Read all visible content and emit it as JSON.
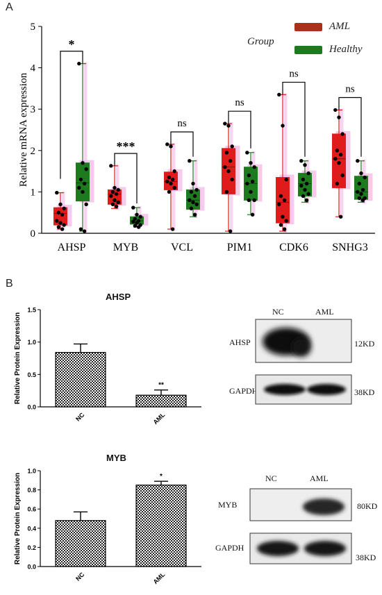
{
  "panel_a": {
    "letter": "A",
    "legend_title": "Group",
    "colors": {
      "AML": "#e01b1b",
      "AML_legend": "#a8321b",
      "Healthy": "#1e7a1e",
      "shadow": "#f3b8e6"
    }
  },
  "panel_b": {
    "letter": "B"
  },
  "chart_data": [
    {
      "type": "box",
      "title": "",
      "xlabel": "",
      "ylabel": "Relative mRNA expression",
      "ylim": [
        0,
        5
      ],
      "yticks": [
        0,
        1,
        2,
        3,
        4,
        5
      ],
      "categories": [
        "AHSP",
        "MYB",
        "VCL",
        "PIM1",
        "CDK6",
        "SNHG3"
      ],
      "legend": [
        "AML",
        "Healthy"
      ],
      "legend_placement": "top-right",
      "significance": [
        "*",
        "***",
        "ns",
        "ns",
        "ns",
        "ns"
      ],
      "series": [
        {
          "name": "AML",
          "color": "#e01b1b",
          "boxes": [
            {
              "min": 0.1,
              "q1": 0.2,
              "median": 0.48,
              "q3": 0.62,
              "max": 0.98
            },
            {
              "min": 0.6,
              "q1": 0.7,
              "median": 0.95,
              "q3": 1.05,
              "max": 1.63
            },
            {
              "min": 0.1,
              "q1": 1.05,
              "median": 1.25,
              "q3": 1.48,
              "max": 2.15
            },
            {
              "min": 0.05,
              "q1": 0.95,
              "median": 1.6,
              "q3": 2.05,
              "max": 2.65
            },
            {
              "min": 0.05,
              "q1": 0.25,
              "median": 0.75,
              "q3": 1.35,
              "max": 3.35
            },
            {
              "min": 0.4,
              "q1": 1.1,
              "median": 1.8,
              "q3": 2.4,
              "max": 2.98
            }
          ],
          "points": [
            [
              0.98,
              0.7,
              0.6,
              0.5,
              0.45,
              0.3,
              0.25,
              0.2,
              0.15,
              0.1
            ],
            [
              1.63,
              1.1,
              1.05,
              1.0,
              0.95,
              0.9,
              0.8,
              0.75,
              0.7,
              0.65
            ],
            [
              2.15,
              2.1,
              1.5,
              1.35,
              1.3,
              1.25,
              1.2,
              1.1,
              1.0,
              0.1
            ],
            [
              2.65,
              2.6,
              2.1,
              1.95,
              1.75,
              1.6,
              1.5,
              1.3,
              1.0,
              0.05
            ],
            [
              3.35,
              2.6,
              1.3,
              0.9,
              0.8,
              0.7,
              0.4,
              0.3,
              0.2,
              0.1
            ],
            [
              2.98,
              2.8,
              2.4,
              2.0,
              1.9,
              1.8,
              1.7,
              1.4,
              1.2,
              0.4
            ]
          ]
        },
        {
          "name": "Healthy",
          "color": "#1e7a1e",
          "boxes": [
            {
              "min": 0.05,
              "q1": 0.78,
              "median": 1.22,
              "q3": 1.7,
              "max": 4.1
            },
            {
              "min": 0.15,
              "q1": 0.22,
              "median": 0.3,
              "q3": 0.4,
              "max": 0.62
            },
            {
              "min": 0.4,
              "q1": 0.58,
              "median": 0.8,
              "q3": 1.05,
              "max": 1.75
            },
            {
              "min": 0.45,
              "q1": 0.8,
              "median": 1.2,
              "q3": 1.6,
              "max": 1.95
            },
            {
              "min": 0.75,
              "q1": 0.9,
              "median": 1.2,
              "q3": 1.45,
              "max": 1.75
            },
            {
              "min": 0.75,
              "q1": 0.82,
              "median": 1.0,
              "q3": 1.38,
              "max": 1.75
            }
          ],
          "points": [
            [
              4.1,
              1.7,
              1.55,
              1.3,
              1.2,
              1.1,
              1.0,
              0.7,
              0.1,
              0.05
            ],
            [
              0.62,
              0.45,
              0.4,
              0.35,
              0.3,
              0.28,
              0.25,
              0.2,
              0.18,
              0.15
            ],
            [
              1.75,
              1.2,
              1.05,
              1.0,
              0.9,
              0.8,
              0.75,
              0.7,
              0.6,
              0.45
            ],
            [
              1.95,
              1.7,
              1.6,
              1.4,
              1.25,
              1.2,
              1.0,
              0.8,
              0.8,
              0.45
            ],
            [
              1.75,
              1.65,
              1.45,
              1.3,
              1.2,
              1.15,
              1.05,
              0.95,
              0.9,
              0.8
            ],
            [
              1.75,
              1.45,
              1.35,
              1.2,
              1.05,
              1.0,
              0.95,
              0.85,
              0.85,
              0.8
            ]
          ]
        }
      ]
    },
    {
      "type": "bar",
      "title": "AHSP",
      "xlabel": "",
      "ylabel": "Relative Protein Expression",
      "ylim": [
        0,
        1.5
      ],
      "yticks": [
        "0.0",
        "0.5",
        "1.0",
        "1.5"
      ],
      "categories": [
        "NC",
        "AML"
      ],
      "values": [
        0.84,
        0.18
      ],
      "errors": [
        0.13,
        0.08
      ],
      "significance": [
        "",
        "**"
      ]
    },
    {
      "type": "bar",
      "title": "MYB",
      "xlabel": "",
      "ylabel": "Relative Protein Expression",
      "ylim": [
        0,
        1.0
      ],
      "yticks": [
        "0.0",
        "0.2",
        "0.4",
        "0.6",
        "0.8",
        "1.0"
      ],
      "categories": [
        "NC",
        "AML"
      ],
      "values": [
        0.48,
        0.85
      ],
      "errors": [
        0.09,
        0.04
      ],
      "significance": [
        "",
        "*"
      ]
    }
  ],
  "blots": [
    {
      "lanes": [
        "NC",
        "AML"
      ],
      "rows": [
        {
          "protein": "AHSP",
          "size": "12KD"
        },
        {
          "protein": "GAPDH",
          "size": "38KD"
        }
      ]
    },
    {
      "lanes": [
        "NC",
        "AML"
      ],
      "rows": [
        {
          "protein": "MYB",
          "size": "80KD"
        },
        {
          "protein": "GAPDH",
          "size": "38KD"
        }
      ]
    }
  ]
}
